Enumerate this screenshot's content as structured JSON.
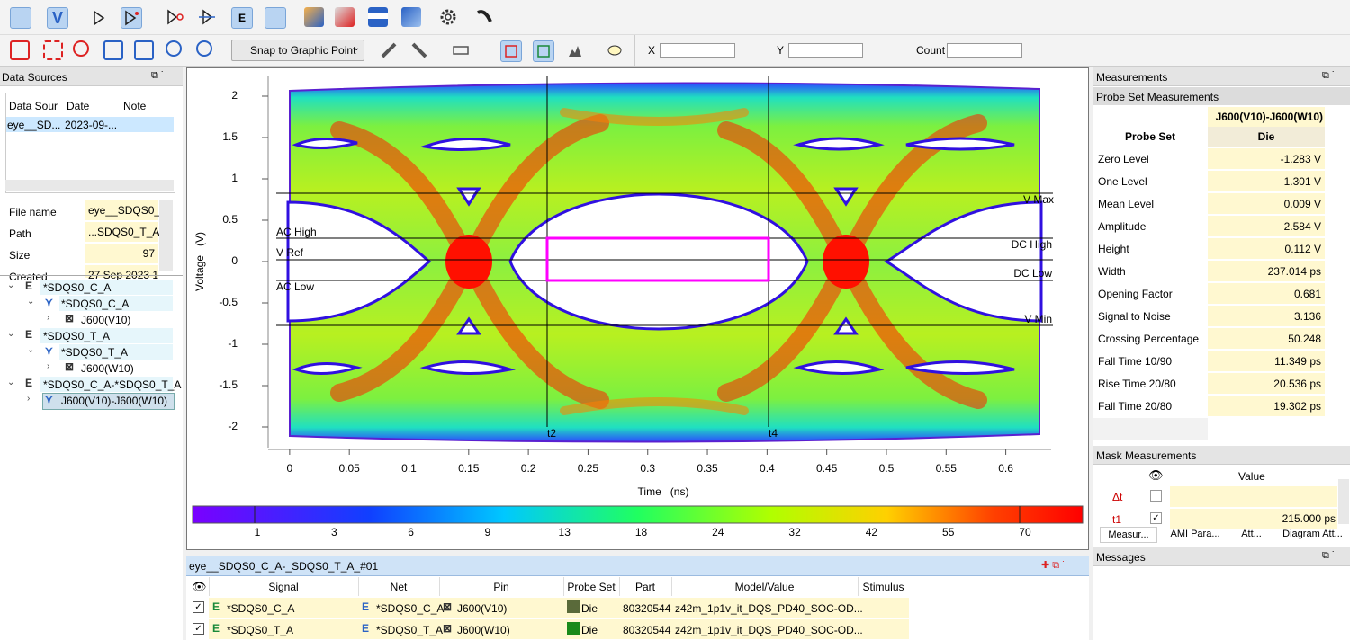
{
  "toolbar": {
    "snap": "Snap to Graphic Point",
    "x_label": "X",
    "y_label": "Y",
    "count_label": "Count"
  },
  "data_sources": {
    "title": "Data Sources",
    "columns": [
      "Data Sour",
      "Date",
      "Note"
    ],
    "rows": [
      [
        "eye__SD...",
        "2023-09-..."
      ]
    ]
  },
  "properties": [
    [
      "File name",
      "eye__SDQS0_("
    ],
    [
      "Path",
      "...SDQS0_T_A_"
    ],
    [
      "Size",
      "97"
    ],
    [
      "Created",
      "27 Sep 2023 1"
    ]
  ],
  "tree": [
    "*SDQS0_C_A",
    "*SDQS0_C_A",
    "J600(V10)",
    "*SDQS0_T_A",
    "*SDQS0_T_A",
    "J600(W10)",
    "*SDQS0_C_A-*SDQS0_T_A",
    "J600(V10)-J600(W10)"
  ],
  "plot": {
    "x_label": "Time   (ns)",
    "y_label": "Voltage   (V)",
    "xlim": [
      -0.018,
      0.638
    ],
    "ylim": [
      -2.25,
      2.25
    ],
    "xticks": [
      0,
      0.05,
      0.1,
      0.15,
      0.2,
      0.25,
      0.3,
      0.35,
      0.4,
      0.45,
      0.5,
      0.55,
      0.6
    ],
    "yticks": [
      -2,
      -1.5,
      -1,
      -0.5,
      0,
      0.5,
      1,
      1.5,
      2
    ],
    "markers": {
      "v_max": "V Max",
      "ac_high": "AC High",
      "v_ref": "V Ref",
      "dc_high": "DC High",
      "dc_low": "DC Low",
      "ac_low": "AC Low",
      "v_min": "V Min",
      "t2": "t2",
      "t4": "t4"
    },
    "colorbar_ticks": [
      1,
      3,
      6,
      9,
      13,
      18,
      24,
      32,
      42,
      55,
      70
    ]
  },
  "waveforms": {
    "title": "eye__SDQS0_C_A-_SDQS0_T_A_#01",
    "columns": [
      "Signal",
      "Net",
      "Pin",
      "Probe Set",
      "Part",
      "Model/Value",
      "Stimulus"
    ],
    "rows": [
      [
        "*SDQS0_C_A",
        "*SDQS0_C_A",
        "J600(V10)",
        "Die",
        "80320544",
        "z42m_1p1v_it_DQS_PD40_SOC-OD..."
      ],
      [
        "*SDQS0_T_A",
        "*SDQS0_T_A",
        "J600(W10)",
        "Die",
        "80320544",
        "z42m_1p1v_it_DQS_PD40_SOC-OD..."
      ]
    ]
  },
  "measurements": {
    "title": "Measurements",
    "subtitle": "Probe Set Measurements",
    "probe": "J600(V10)-J600(W10)",
    "row_header": "Probe Set",
    "column": "Die",
    "rows": [
      [
        "Zero Level",
        "-1.283 V"
      ],
      [
        "One Level",
        "1.301 V"
      ],
      [
        "Mean Level",
        "0.009 V"
      ],
      [
        "Amplitude",
        "2.584 V"
      ],
      [
        "Height",
        "0.112 V"
      ],
      [
        "Width",
        "237.014 ps"
      ],
      [
        "Opening Factor",
        "0.681"
      ],
      [
        "Signal to Noise",
        "3.136"
      ],
      [
        "Crossing Percentage",
        "50.248"
      ],
      [
        "Fall Time 10/90",
        "11.349 ps"
      ],
      [
        "Rise Time 20/80",
        "20.536 ps"
      ],
      [
        "Fall Time 20/80",
        "19.302 ps"
      ]
    ]
  },
  "mask": {
    "title": "Mask Measurements",
    "column": "Value",
    "rows": [
      [
        "Δt"
      ],
      [
        "t1",
        "215.000 ps"
      ]
    ]
  },
  "tabs": [
    "Measur...",
    "AMI Para...",
    "Att...",
    "Diagram Att..."
  ],
  "messages": "Messages"
}
